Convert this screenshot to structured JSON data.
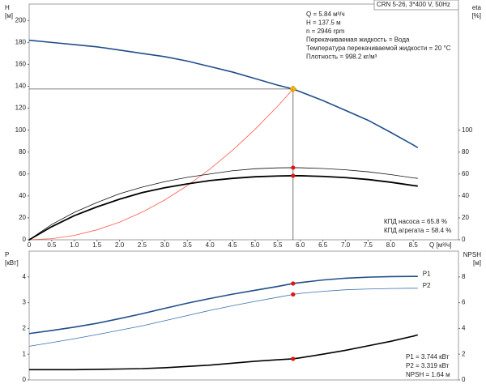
{
  "chart_data": [
    {
      "type": "line",
      "corner_label": "CRN 5-26, 3*400 V, 50Hz",
      "ylabel": "H",
      "yunit": "[м]",
      "y2label": "eta",
      "y2unit": "[%]",
      "xlabel": "Q [м³/ч]",
      "info": [
        "Q = 5.84 м³/ч",
        "H = 137.5 м",
        "n = 2946 rpm",
        "Перекачиваемая жидкость = Вода",
        "Температура перекачиваемой жидкости = 20 °C",
        "Плотность = 998.2 кг/м³"
      ],
      "notes": [
        "КПД насоса = 65.8 %",
        "КПД агрегата = 58.4 %"
      ],
      "x": [
        0,
        0.5,
        1,
        1.5,
        2,
        2.5,
        3,
        3.5,
        4,
        4.5,
        5,
        5.5,
        5.84,
        6,
        6.5,
        7,
        7.5,
        8,
        8.5,
        8.6
      ],
      "xlim": [
        0,
        9.5
      ],
      "xticks": [
        0,
        0.5,
        {
          "value": 1,
          "label": "1.0"
        },
        1.5,
        {
          "value": 2,
          "label": "2.0"
        },
        2.5,
        {
          "value": 3,
          "label": "3.0"
        },
        3.5,
        {
          "value": 4,
          "label": "4.0"
        },
        4.5,
        {
          "value": 5,
          "label": "5.0"
        },
        5.5,
        {
          "value": 6,
          "label": "6.0"
        },
        6.5,
        {
          "value": 7,
          "label": "7.0"
        },
        7.5,
        {
          "value": 8,
          "label": "8.0"
        },
        8.5
      ],
      "ylim": [
        0,
        215
      ],
      "yticks": [
        0,
        20,
        40,
        60,
        80,
        100,
        120,
        140,
        160,
        180,
        200
      ],
      "y2lim": [
        0,
        215
      ],
      "y2ticks": [
        0,
        20,
        40,
        60,
        80,
        100
      ],
      "series": [
        {
          "color": "#1f4e8c",
          "width": 1.6,
          "marker_color": "#f5b800",
          "values": [
            182,
            180,
            178,
            176,
            173,
            170,
            167,
            163,
            158,
            153,
            147,
            141,
            137.5,
            135,
            127,
            118,
            109,
            98,
            86.5,
            84
          ]
        },
        {
          "color": "#ff5a4a",
          "width": 0.8,
          "values": [
            0,
            1.0,
            4.0,
            9.1,
            16.1,
            25.2,
            36.3,
            49.4,
            64.5,
            81.6,
            100.8,
            121.9,
            137.5,
            null,
            null,
            null,
            null,
            null,
            null,
            null
          ]
        },
        {
          "color": "#111111",
          "width": 0.8,
          "axis": "y2",
          "marker_color": "#e51010",
          "values": [
            0,
            14,
            25,
            34,
            42,
            48,
            53,
            57,
            60,
            63,
            64.8,
            65.6,
            65.8,
            65.7,
            65,
            63.8,
            62,
            59.5,
            56.5,
            56
          ]
        },
        {
          "color": "#000000",
          "width": 1.8,
          "axis": "y2",
          "marker_color": "#e51010",
          "values": [
            0,
            12,
            22,
            30,
            37,
            43,
            47.5,
            51,
            54,
            56,
            57.5,
            58.2,
            58.4,
            58.4,
            57.8,
            56.7,
            55,
            52.5,
            49.5,
            49
          ]
        }
      ]
    },
    {
      "type": "line",
      "ylabel": "P",
      "yunit": "[кВт]",
      "y2label": "NPSH",
      "y2unit": "[м]",
      "notes": [
        "P1 = 3.744 кВт",
        "P2 = 3.319 кВт",
        "NPSH = 1.64 м"
      ],
      "x": [
        0,
        0.5,
        1,
        1.5,
        2,
        2.5,
        3,
        3.5,
        4,
        4.5,
        5,
        5.5,
        5.84,
        6,
        6.5,
        7,
        7.5,
        8,
        8.5,
        8.6
      ],
      "xlim": [
        0,
        9.5
      ],
      "ylim": [
        0,
        5
      ],
      "yticks": [
        0,
        1,
        2,
        3,
        4
      ],
      "y2lim": [
        0,
        10
      ],
      "y2ticks": [
        0,
        2,
        4,
        6,
        8
      ],
      "series": [
        {
          "name": "P1",
          "color": "#1f4e8c",
          "width": 1.6,
          "marker_color": "#e51010",
          "values": [
            1.8,
            1.92,
            2.05,
            2.2,
            2.38,
            2.57,
            2.78,
            2.98,
            3.16,
            3.33,
            3.48,
            3.63,
            3.744,
            3.78,
            3.88,
            3.95,
            3.99,
            4.01,
            4.02,
            4.02
          ]
        },
        {
          "name": "P2",
          "color": "#3a6fb0",
          "width": 0.8,
          "marker_color": "#e51010",
          "values": [
            1.31,
            1.45,
            1.6,
            1.76,
            1.93,
            2.1,
            2.3,
            2.5,
            2.7,
            2.88,
            3.05,
            3.21,
            3.319,
            3.36,
            3.44,
            3.5,
            3.53,
            3.55,
            3.56,
            3.56
          ]
        },
        {
          "color": "#000000",
          "width": 1.6,
          "axis": "y2",
          "marker_color": "#e51010",
          "values": [
            0.8,
            0.8,
            0.8,
            0.82,
            0.85,
            0.88,
            0.95,
            1.05,
            1.15,
            1.3,
            1.45,
            1.57,
            1.64,
            1.72,
            2.0,
            2.3,
            2.65,
            3.0,
            3.4,
            3.5
          ]
        }
      ]
    }
  ]
}
